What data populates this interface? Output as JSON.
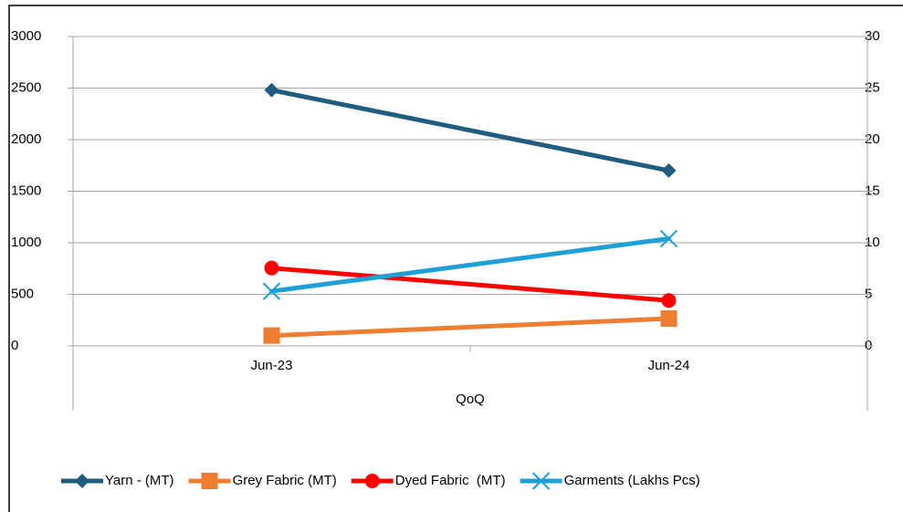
{
  "chart_data": {
    "type": "line",
    "xlabel": "QoQ",
    "categories": [
      "Jun-23",
      "Jun-24"
    ],
    "series": [
      {
        "name": "Yarn - (MT)",
        "color": "#1f5c7f",
        "marker": "diamond",
        "values": [
          2480,
          1700
        ]
      },
      {
        "name": "Grey Fabric (MT)",
        "color": "#ed7d31",
        "marker": "square",
        "values": [
          100,
          265
        ]
      },
      {
        "name": "Dyed Fabric  (MT)",
        "color": "#ff0000",
        "marker": "circle",
        "values": [
          755,
          440
        ]
      },
      {
        "name": "Garments (Lakhs Pcs)",
        "color": "#1e9fd6",
        "marker": "x",
        "axis": "y2",
        "values": [
          5.3,
          10.4
        ]
      }
    ],
    "ylim": [
      0,
      3000
    ],
    "yticks": [
      0,
      500,
      1000,
      1500,
      2000,
      2500,
      3000
    ],
    "y2lim": [
      0,
      30
    ],
    "y2ticks": [
      0,
      5,
      10,
      15,
      20,
      25,
      30
    ],
    "grid": true,
    "legend": "bottom"
  }
}
